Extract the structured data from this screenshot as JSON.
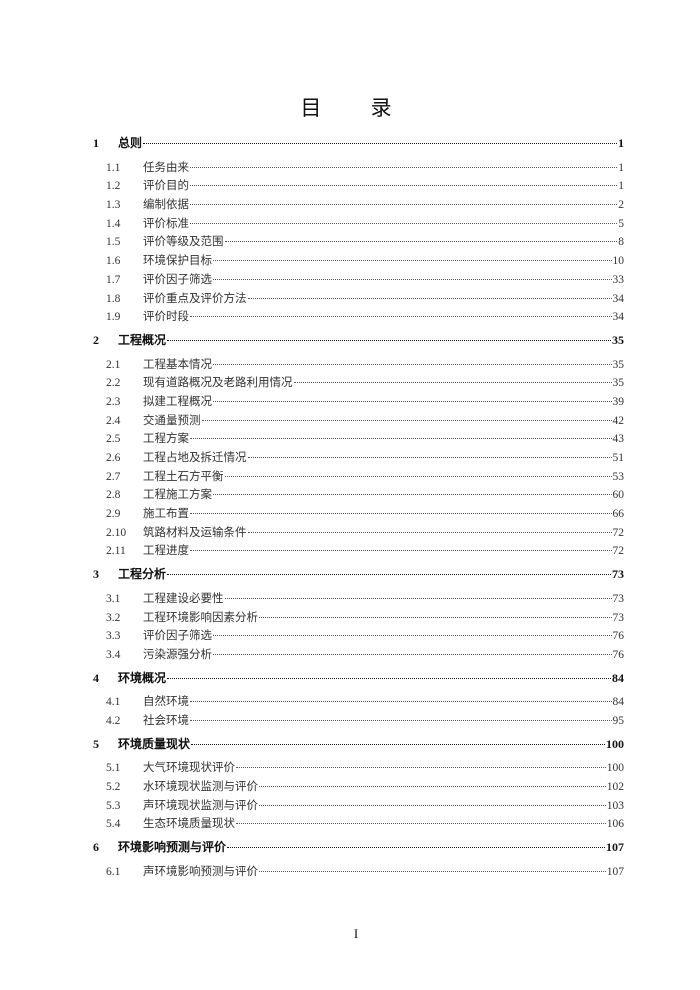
{
  "title": "目 录",
  "toc": [
    {
      "num": "1",
      "text": "总则",
      "page": "1",
      "children": [
        {
          "num": "1.1",
          "text": "任务由来",
          "page": "1"
        },
        {
          "num": "1.2",
          "text": "评价目的",
          "page": "1"
        },
        {
          "num": "1.3",
          "text": "编制依据",
          "page": "2"
        },
        {
          "num": "1.4",
          "text": "评价标准",
          "page": "5"
        },
        {
          "num": "1.5",
          "text": "评价等级及范围",
          "page": "8"
        },
        {
          "num": "1.6",
          "text": "环境保护目标",
          "page": "10"
        },
        {
          "num": "1.7",
          "text": "评价因子筛选",
          "page": "33"
        },
        {
          "num": "1.8",
          "text": "评价重点及评价方法",
          "page": "34"
        },
        {
          "num": "1.9",
          "text": "评价时段",
          "page": "34"
        }
      ]
    },
    {
      "num": "2",
      "text": "工程概况",
      "page": "35",
      "children": [
        {
          "num": "2.1",
          "text": "工程基本情况",
          "page": "35"
        },
        {
          "num": "2.2",
          "text": "现有道路概况及老路利用情况",
          "page": "35"
        },
        {
          "num": "2.3",
          "text": "拟建工程概况",
          "page": "39"
        },
        {
          "num": "2.4",
          "text": "交通量预测",
          "page": "42"
        },
        {
          "num": "2.5",
          "text": "工程方案",
          "page": "43"
        },
        {
          "num": "2.6",
          "text": "工程占地及拆迁情况",
          "page": "51"
        },
        {
          "num": "2.7",
          "text": "工程土石方平衡",
          "page": "53"
        },
        {
          "num": "2.8",
          "text": "工程施工方案",
          "page": "60"
        },
        {
          "num": "2.9",
          "text": "施工布置",
          "page": "66"
        },
        {
          "num": "2.10",
          "text": "筑路材料及运输条件",
          "page": "72"
        },
        {
          "num": "2.11",
          "text": "工程进度",
          "page": "72"
        }
      ]
    },
    {
      "num": "3",
      "text": "工程分析",
      "page": "73",
      "children": [
        {
          "num": "3.1",
          "text": "工程建设必要性",
          "page": "73"
        },
        {
          "num": "3.2",
          "text": "工程环境影响因素分析",
          "page": "73"
        },
        {
          "num": "3.3",
          "text": "评价因子筛选",
          "page": "76"
        },
        {
          "num": "3.4",
          "text": "污染源强分析",
          "page": "76"
        }
      ]
    },
    {
      "num": "4",
      "text": "环境概况",
      "page": "84",
      "children": [
        {
          "num": "4.1",
          "text": "自然环境",
          "page": "84"
        },
        {
          "num": "4.2",
          "text": "社会环境",
          "page": "95"
        }
      ]
    },
    {
      "num": "5",
      "text": "环境质量现状",
      "page": "100",
      "children": [
        {
          "num": "5.1",
          "text": "大气环境现状评价",
          "page": "100"
        },
        {
          "num": "5.2",
          "text": "水环境现状监测与评价",
          "page": "102"
        },
        {
          "num": "5.3",
          "text": "声环境现状监测与评价",
          "page": "103"
        },
        {
          "num": "5.4",
          "text": "生态环境质量现状",
          "page": "106"
        }
      ]
    },
    {
      "num": "6",
      "text": "环境影响预测与评价",
      "page": "107",
      "children": [
        {
          "num": "6.1",
          "text": "声环境影响预测与评价",
          "page": "107"
        }
      ]
    }
  ],
  "footer": {
    "page_number": "I"
  }
}
